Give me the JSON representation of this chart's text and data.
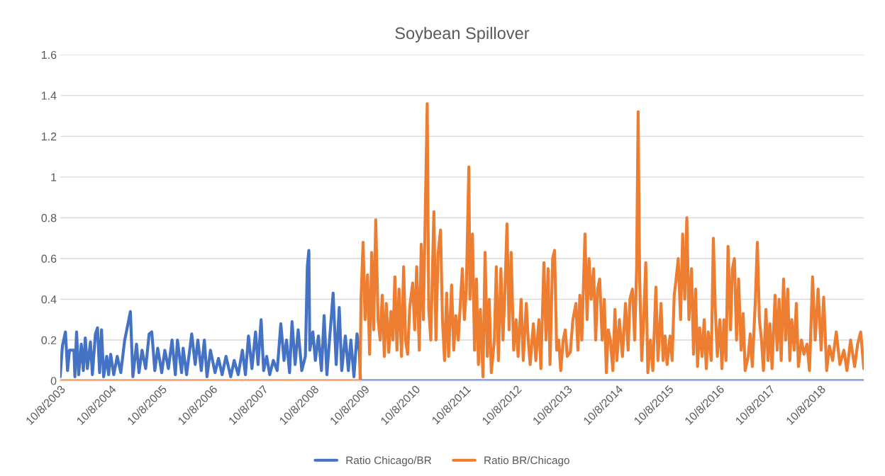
{
  "chart_data": {
    "type": "line",
    "title": "Soybean Spillover",
    "xlim": [
      "2003-10-08",
      "2019-08-16"
    ],
    "xticks": [
      {
        "value": "2003-10-08",
        "label": "10/8/2003"
      },
      {
        "value": "2004-10-08",
        "label": "10/8/2004"
      },
      {
        "value": "2005-10-08",
        "label": "10/8/2005"
      },
      {
        "value": "2006-10-08",
        "label": "10/8/2006"
      },
      {
        "value": "2007-10-08",
        "label": "10/8/2007"
      },
      {
        "value": "2008-10-08",
        "label": "10/8/2008"
      },
      {
        "value": "2009-10-08",
        "label": "10/8/2009"
      },
      {
        "value": "2010-10-08",
        "label": "10/8/2010"
      },
      {
        "value": "2011-10-08",
        "label": "10/8/2011"
      },
      {
        "value": "2012-10-08",
        "label": "10/8/2012"
      },
      {
        "value": "2013-10-08",
        "label": "10/8/2013"
      },
      {
        "value": "2014-10-08",
        "label": "10/8/2014"
      },
      {
        "value": "2015-10-08",
        "label": "10/8/2015"
      },
      {
        "value": "2016-10-08",
        "label": "10/8/2016"
      },
      {
        "value": "2017-10-08",
        "label": "10/8/2017"
      },
      {
        "value": "2018-10-08",
        "label": "10/8/2018"
      }
    ],
    "ylim": [
      0,
      1.6
    ],
    "yticks": [
      0,
      0.2,
      0.4,
      0.6,
      0.8,
      1,
      1.2,
      1.4,
      1.6
    ],
    "grid": "y",
    "legend": "bottom",
    "marker": "none",
    "line_style": "solid",
    "series": [
      {
        "name": "Ratio Chicago/BR",
        "color": "#4472c4",
        "x": [
          "2003-10-08",
          "2003-10-24",
          "2003-11-15",
          "2003-11-30",
          "2003-12-14",
          "2004-01-15",
          "2004-01-22",
          "2004-02-03",
          "2004-02-18",
          "2004-03-08",
          "2004-03-23",
          "2004-04-06",
          "2004-04-21",
          "2004-05-13",
          "2004-05-27",
          "2004-06-18",
          "2004-07-03",
          "2004-07-18",
          "2004-08-01",
          "2004-08-16",
          "2004-09-07",
          "2004-09-21",
          "2004-10-06",
          "2004-10-28",
          "2004-11-22",
          "2004-12-18",
          "2005-01-15",
          "2005-01-30",
          "2005-02-25",
          "2005-03-15",
          "2005-04-10",
          "2005-04-28",
          "2005-05-20",
          "2005-06-15",
          "2005-07-10",
          "2005-07-29",
          "2005-08-20",
          "2005-09-10",
          "2005-10-09",
          "2005-10-31",
          "2005-11-26",
          "2005-12-22",
          "2006-01-15",
          "2006-01-30",
          "2006-03-01",
          "2006-03-12",
          "2006-04-06",
          "2006-05-13",
          "2006-06-07",
          "2006-06-26",
          "2006-07-21",
          "2006-08-12",
          "2006-08-31",
          "2006-09-25",
          "2006-10-28",
          "2006-11-22",
          "2006-12-18",
          "2007-01-15",
          "2007-02-18",
          "2007-03-15",
          "2007-04-13",
          "2007-05-13",
          "2007-06-04",
          "2007-06-26",
          "2007-07-21",
          "2007-08-16",
          "2007-09-03",
          "2007-09-25",
          "2007-10-13",
          "2007-11-04",
          "2007-11-26",
          "2007-12-22",
          "2008-01-19",
          "2008-02-14",
          "2008-03-08",
          "2008-03-26",
          "2008-04-17",
          "2008-05-05",
          "2008-05-27",
          "2008-06-18",
          "2008-07-14",
          "2008-08-09",
          "2008-08-23",
          "2008-09-03",
          "2008-09-10",
          "2008-10-02",
          "2008-10-20",
          "2008-11-11",
          "2008-12-03",
          "2008-12-22",
          "2009-01-11",
          "2009-01-30",
          "2009-02-25",
          "2009-03-19",
          "2009-04-10",
          "2009-04-28",
          "2009-05-24",
          "2009-06-15",
          "2009-07-03",
          "2009-07-25",
          "2009-08-16",
          "2009-09-03",
          "2009-09-10",
          "2019-08-16"
        ],
        "values": [
          0.02,
          0.17,
          0.24,
          0.05,
          0.15,
          0.15,
          0.02,
          0.24,
          0.03,
          0.18,
          0.05,
          0.21,
          0.06,
          0.19,
          0.03,
          0.23,
          0.26,
          0.04,
          0.25,
          0.02,
          0.12,
          0.03,
          0.13,
          0.03,
          0.12,
          0.04,
          0.2,
          0.25,
          0.34,
          0.02,
          0.18,
          0.04,
          0.15,
          0.06,
          0.23,
          0.24,
          0.05,
          0.16,
          0.04,
          0.15,
          0.06,
          0.2,
          0.03,
          0.2,
          0.04,
          0.16,
          0.03,
          0.23,
          0.08,
          0.2,
          0.05,
          0.2,
          0.02,
          0.15,
          0.04,
          0.11,
          0.03,
          0.12,
          0.02,
          0.1,
          0.03,
          0.15,
          0.03,
          0.22,
          0.06,
          0.24,
          0.08,
          0.3,
          0.05,
          0.12,
          0.03,
          0.1,
          0.05,
          0.28,
          0.1,
          0.2,
          0.04,
          0.29,
          0.08,
          0.25,
          0.05,
          0.12,
          0.56,
          0.64,
          0.15,
          0.24,
          0.1,
          0.22,
          0.05,
          0.32,
          0.03,
          0.2,
          0.43,
          0.08,
          0.36,
          0.05,
          0.22,
          0.05,
          0.2,
          0.02,
          0.23,
          0.14,
          0,
          0
        ]
      },
      {
        "name": "Ratio BR/Chicago",
        "color": "#ed7d31",
        "x": [
          "2003-10-08",
          "2009-09-07",
          "2009-09-14",
          "2009-09-29",
          "2009-10-13",
          "2009-10-31",
          "2009-11-15",
          "2009-11-30",
          "2009-12-14",
          "2009-12-29",
          "2010-01-15",
          "2010-01-30",
          "2010-02-14",
          "2010-03-01",
          "2010-03-15",
          "2010-04-02",
          "2010-04-17",
          "2010-05-02",
          "2010-05-16",
          "2010-05-31",
          "2010-06-15",
          "2010-07-03",
          "2010-07-18",
          "2010-08-01",
          "2010-08-16",
          "2010-08-31",
          "2010-09-21",
          "2010-10-06",
          "2010-10-20",
          "2010-11-08",
          "2010-11-22",
          "2010-12-07",
          "2010-12-22",
          "2011-01-04",
          "2011-01-15",
          "2011-01-30",
          "2011-02-21",
          "2011-03-08",
          "2011-03-23",
          "2011-04-10",
          "2011-04-24",
          "2011-05-09",
          "2011-05-24",
          "2011-06-07",
          "2011-06-29",
          "2011-07-14",
          "2011-07-29",
          "2011-08-16",
          "2011-09-14",
          "2011-09-29",
          "2011-10-13",
          "2011-10-31",
          "2011-11-08",
          "2011-11-26",
          "2011-12-11",
          "2011-12-25",
          "2012-01-08",
          "2012-01-22",
          "2012-02-10",
          "2012-02-25",
          "2012-03-12",
          "2012-03-26",
          "2012-04-10",
          "2012-05-02",
          "2012-05-16",
          "2012-05-31",
          "2012-06-18",
          "2012-07-03",
          "2012-07-18",
          "2012-08-01",
          "2012-08-16",
          "2012-08-31",
          "2012-09-18",
          "2012-10-06",
          "2012-10-20",
          "2012-11-11",
          "2012-11-26",
          "2012-12-18",
          "2013-01-01",
          "2013-01-15",
          "2013-02-07",
          "2013-02-25",
          "2013-03-19",
          "2013-04-02",
          "2013-04-24",
          "2013-05-09",
          "2013-05-24",
          "2013-06-07",
          "2013-06-26",
          "2013-07-10",
          "2013-07-25",
          "2013-08-09",
          "2013-08-23",
          "2013-09-10",
          "2013-09-25",
          "2013-10-09",
          "2013-10-31",
          "2013-11-19",
          "2013-12-11",
          "2013-12-25",
          "2014-01-08",
          "2014-01-22",
          "2014-02-14",
          "2014-03-01",
          "2014-03-15",
          "2014-03-30",
          "2014-04-17",
          "2014-05-02",
          "2014-05-16",
          "2014-05-31",
          "2014-06-18",
          "2014-07-03",
          "2014-07-18",
          "2014-08-01",
          "2014-08-16",
          "2014-09-03",
          "2014-09-18",
          "2014-10-02",
          "2014-10-20",
          "2014-11-11",
          "2014-12-03",
          "2014-12-22",
          "2015-01-04",
          "2015-01-22",
          "2015-02-07",
          "2015-02-21",
          "2015-03-04",
          "2015-03-15",
          "2015-03-30",
          "2015-04-13",
          "2015-04-28",
          "2015-05-13",
          "2015-05-31",
          "2015-06-18",
          "2015-07-10",
          "2015-07-25",
          "2015-08-16",
          "2015-08-31",
          "2015-09-14",
          "2015-09-29",
          "2015-10-20",
          "2015-11-04",
          "2015-11-19",
          "2015-12-03",
          "2015-12-18",
          "2016-01-04",
          "2016-01-19",
          "2016-02-03",
          "2016-02-18",
          "2016-03-04",
          "2016-03-23",
          "2016-04-06",
          "2016-04-21",
          "2016-05-05",
          "2016-05-20",
          "2016-06-07",
          "2016-06-22",
          "2016-07-07",
          "2016-07-21",
          "2016-08-12",
          "2016-08-27",
          "2016-09-10",
          "2016-09-25",
          "2016-10-13",
          "2016-10-28",
          "2016-11-11",
          "2016-11-26",
          "2016-12-11",
          "2016-12-29",
          "2017-01-11",
          "2017-01-26",
          "2017-02-10",
          "2017-02-25",
          "2017-03-15",
          "2017-03-30",
          "2017-04-13",
          "2017-05-05",
          "2017-05-20",
          "2017-06-04",
          "2017-06-26",
          "2017-07-10",
          "2017-07-25",
          "2017-08-09",
          "2017-08-23",
          "2017-09-10",
          "2017-09-25",
          "2017-10-09",
          "2017-10-24",
          "2017-11-15",
          "2017-11-30",
          "2017-12-14",
          "2017-12-29",
          "2018-01-15",
          "2018-01-30",
          "2018-02-14",
          "2018-03-01",
          "2018-03-15",
          "2018-04-02",
          "2018-04-17",
          "2018-05-02",
          "2018-05-24",
          "2018-06-11",
          "2018-07-03",
          "2018-07-21",
          "2018-08-12",
          "2018-08-31",
          "2018-09-21",
          "2018-10-13",
          "2018-10-31",
          "2018-11-22",
          "2018-12-11",
          "2019-01-04",
          "2019-01-30",
          "2019-02-25",
          "2019-03-26",
          "2019-04-17",
          "2019-05-13",
          "2019-06-11",
          "2019-07-03",
          "2019-07-25",
          "2019-08-16"
        ],
        "values": [
          0,
          0,
          0.4,
          0.68,
          0.3,
          0.52,
          0.13,
          0.63,
          0.25,
          0.79,
          0.3,
          0.2,
          0.42,
          0.12,
          0.38,
          0.14,
          0.34,
          0.2,
          0.51,
          0.15,
          0.45,
          0.12,
          0.56,
          0.2,
          0.13,
          0.36,
          0.48,
          0.25,
          0.56,
          0.15,
          0.67,
          0.3,
          0.86,
          1.36,
          0.35,
          0.2,
          0.83,
          0.2,
          0.62,
          0.74,
          0.3,
          0.1,
          0.43,
          0.12,
          0.47,
          0.15,
          0.32,
          0.2,
          0.55,
          0.3,
          0.45,
          1.05,
          0.4,
          0.72,
          0.15,
          0.5,
          0.08,
          0.35,
          0.02,
          0.63,
          0.12,
          0.4,
          0.04,
          0.2,
          0.56,
          0.1,
          0.55,
          0.2,
          0.46,
          0.77,
          0.25,
          0.63,
          0.15,
          0.3,
          0.12,
          0.4,
          0.1,
          0.38,
          0.2,
          0.08,
          0.28,
          0.1,
          0.3,
          0.06,
          0.58,
          0.2,
          0.55,
          0.08,
          0.6,
          0.64,
          0.15,
          0.2,
          0.05,
          0.2,
          0.25,
          0.12,
          0.14,
          0.3,
          0.38,
          0.15,
          0.42,
          0.2,
          0.72,
          0.3,
          0.6,
          0.4,
          0.55,
          0.2,
          0.45,
          0.5,
          0.2,
          0.4,
          0.04,
          0.25,
          0.2,
          0.05,
          0.35,
          0.1,
          0.3,
          0.12,
          0.38,
          0.15,
          0.4,
          0.45,
          0.2,
          0.55,
          1.32,
          0.5,
          0.1,
          0.3,
          0.58,
          0.04,
          0.2,
          0.05,
          0.46,
          0.1,
          0.38,
          0.1,
          0.22,
          0.08,
          0.22,
          0.1,
          0.42,
          0.5,
          0.6,
          0.3,
          0.72,
          0.4,
          0.8,
          0.3,
          0.55,
          0.13,
          0.45,
          0.07,
          0.26,
          0.12,
          0.3,
          0.06,
          0.24,
          0.1,
          0.7,
          0.35,
          0.12,
          0.3,
          0.06,
          0.3,
          0.1,
          0.66,
          0.25,
          0.55,
          0.6,
          0.2,
          0.5,
          0.15,
          0.33,
          0.05,
          0.12,
          0.23,
          0.07,
          0.4,
          0.68,
          0.3,
          0.2,
          0.05,
          0.35,
          0.1,
          0.28,
          0.06,
          0.42,
          0.15,
          0.4,
          0.1,
          0.5,
          0.2,
          0.45,
          0.1,
          0.3,
          0.15,
          0.38,
          0.07,
          0.2,
          0.13,
          0.18,
          0.05,
          0.51,
          0.2,
          0.45,
          0.15,
          0.41,
          0.05,
          0.17,
          0.1,
          0.24,
          0.08,
          0.15,
          0.05,
          0.2,
          0.07,
          0.18,
          0.24,
          0.06
        ]
      }
    ]
  }
}
